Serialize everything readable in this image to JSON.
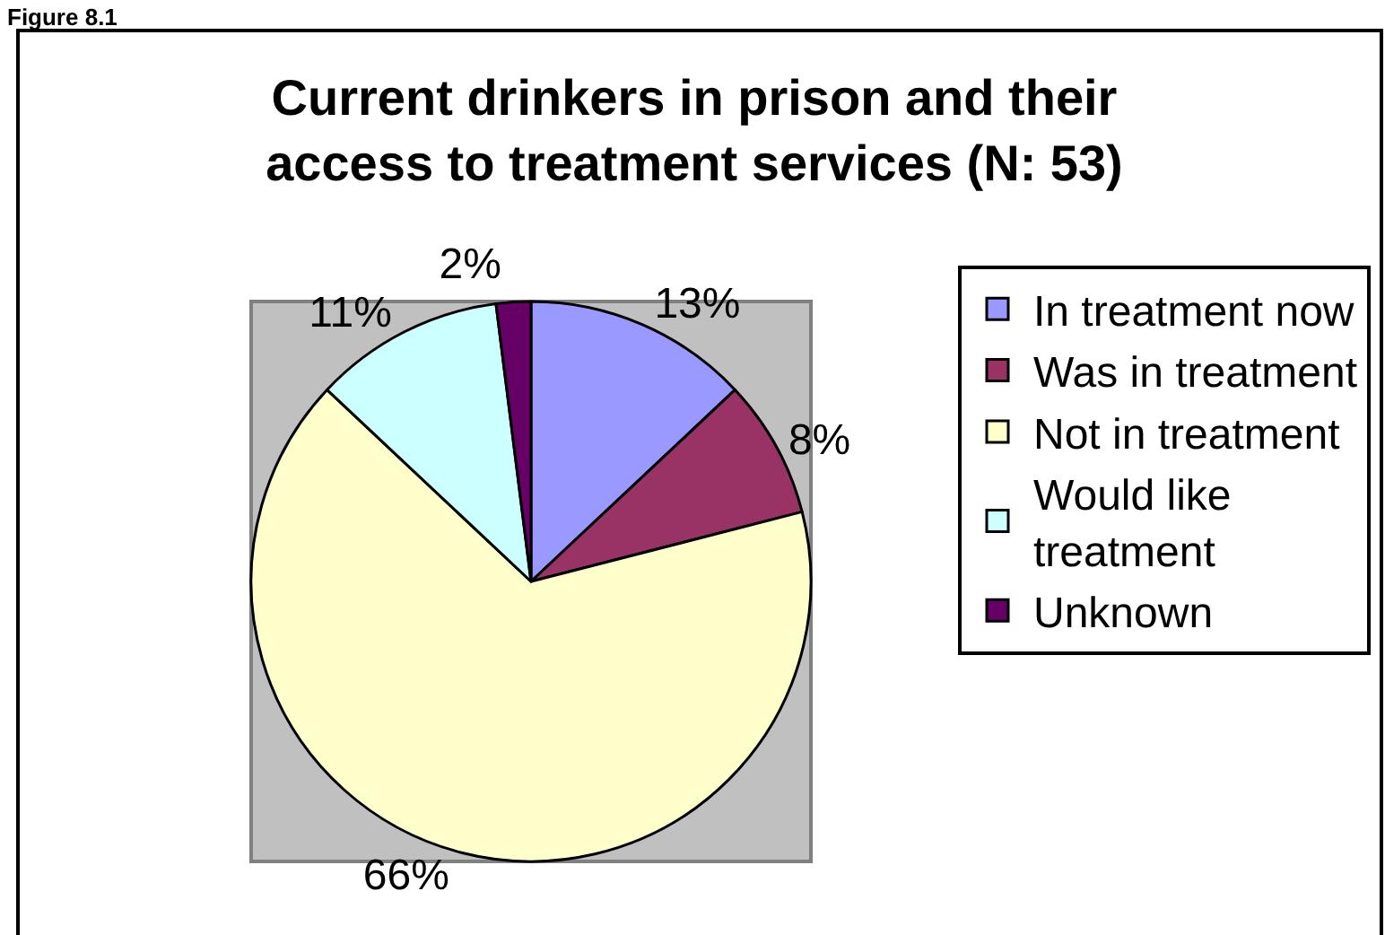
{
  "chart_data": {
    "type": "pie",
    "title": "Current drinkers in prison and their access to treatment services (N: 53)",
    "annotations": [
      "Figure 8.1"
    ],
    "categories": [
      "In treatment now",
      "Was in treatment",
      "Not in treatment",
      "Would like treatment",
      "Unknown"
    ],
    "values": [
      13,
      8,
      66,
      11,
      2
    ],
    "colors": [
      "#9999ff",
      "#993366",
      "#ffffcc",
      "#ccffff",
      "#660066"
    ],
    "value_labels": [
      "13%",
      "8%",
      "66%",
      "11%",
      "2%"
    ],
    "legend": "right"
  }
}
